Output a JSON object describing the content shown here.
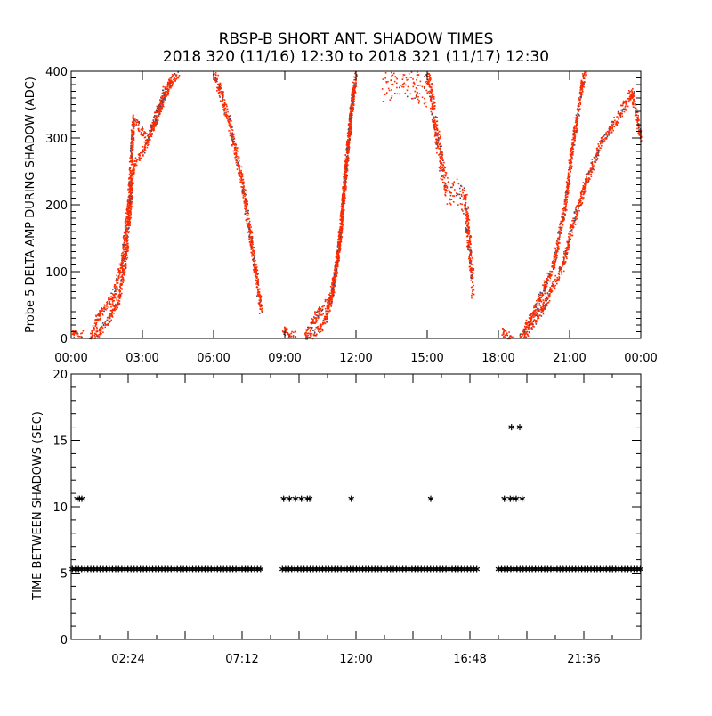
{
  "chart_data": [
    {
      "type": "scatter",
      "title": "RBSP-B SHORT ANT. SHADOW TIMES",
      "subtitle": "2018 320 (11/16) 12:30 to 2018 321 (11/17) 12:30",
      "xlabel": "",
      "ylabel": "Probe 5 DELTA AMP DURING SHADOW (ADC)",
      "xlim": [
        0,
        24
      ],
      "ylim": [
        0,
        400
      ],
      "xticks": [
        0,
        3,
        6,
        9,
        12,
        15,
        18,
        21,
        24
      ],
      "xtick_labels": [
        "00:00",
        "03:00",
        "06:00",
        "09:00",
        "12:00",
        "15:00",
        "18:00",
        "21:00",
        "00:00"
      ],
      "yticks": [
        0,
        100,
        200,
        300,
        400
      ],
      "ytick_labels": [
        "0",
        "100",
        "200",
        "300",
        "400"
      ],
      "colors": {
        "primary": "#ff2a00",
        "secondary": "#4a4a6a"
      },
      "series": [
        {
          "name": "track-1-low",
          "spread": 6,
          "points": [
            [
              0.0,
              10
            ],
            [
              0.2,
              4
            ],
            [
              0.45,
              8
            ]
          ]
        },
        {
          "name": "track-1-rise-a",
          "spread": 8,
          "points": [
            [
              0.8,
              2
            ],
            [
              1.2,
              40
            ],
            [
              1.7,
              60
            ],
            [
              2.1,
              110
            ],
            [
              2.4,
              200
            ],
            [
              2.6,
              330
            ],
            [
              3.2,
              300
            ],
            [
              3.9,
              370
            ],
            [
              4.5,
              400
            ]
          ]
        },
        {
          "name": "track-1-rise-b",
          "spread": 6,
          "points": [
            [
              0.9,
              0
            ],
            [
              1.5,
              25
            ],
            [
              2.0,
              60
            ],
            [
              2.3,
              130
            ],
            [
              2.6,
              260
            ],
            [
              3.0,
              280
            ],
            [
              3.6,
              330
            ],
            [
              4.2,
              390
            ]
          ]
        },
        {
          "name": "track-1-fall",
          "spread": 10,
          "points": [
            [
              6.0,
              400
            ],
            [
              6.6,
              330
            ],
            [
              7.1,
              250
            ],
            [
              7.5,
              160
            ],
            [
              7.8,
              90
            ],
            [
              8.0,
              40
            ]
          ]
        },
        {
          "name": "track-2-low",
          "spread": 6,
          "points": [
            [
              8.9,
              15
            ],
            [
              9.2,
              5
            ],
            [
              9.4,
              8
            ]
          ]
        },
        {
          "name": "track-2-rise-a",
          "spread": 8,
          "points": [
            [
              9.8,
              2
            ],
            [
              10.3,
              35
            ],
            [
              10.9,
              60
            ],
            [
              11.2,
              120
            ],
            [
              11.5,
              230
            ],
            [
              11.8,
              350
            ],
            [
              12.0,
              400
            ]
          ]
        },
        {
          "name": "track-2-rise-b",
          "spread": 6,
          "points": [
            [
              9.9,
              0
            ],
            [
              10.6,
              20
            ],
            [
              11.0,
              70
            ],
            [
              11.3,
              150
            ],
            [
              11.6,
              280
            ],
            [
              11.9,
              380
            ]
          ]
        },
        {
          "name": "track-2-top",
          "spread": 25,
          "points": [
            [
              13.1,
              380
            ],
            [
              14.0,
              390
            ],
            [
              15.0,
              370
            ]
          ]
        },
        {
          "name": "track-2-fall",
          "spread": 20,
          "points": [
            [
              15.0,
              400
            ],
            [
              15.4,
              300
            ],
            [
              15.8,
              220
            ],
            [
              16.3,
              220
            ],
            [
              16.6,
              200
            ],
            [
              16.9,
              80
            ]
          ]
        },
        {
          "name": "track-3-low",
          "spread": 6,
          "points": [
            [
              18.1,
              12
            ],
            [
              18.4,
              4
            ],
            [
              18.6,
              8
            ]
          ]
        },
        {
          "name": "track-3-rise-a",
          "spread": 7,
          "points": [
            [
              18.9,
              0
            ],
            [
              19.6,
              50
            ],
            [
              20.3,
              110
            ],
            [
              20.8,
              200
            ],
            [
              21.1,
              290
            ],
            [
              21.6,
              400
            ]
          ]
        },
        {
          "name": "track-3-rise-b",
          "spread": 8,
          "points": [
            [
              19.0,
              0
            ],
            [
              19.9,
              50
            ],
            [
              20.7,
              110
            ],
            [
              21.1,
              170
            ],
            [
              21.7,
              240
            ],
            [
              22.4,
              300
            ],
            [
              23.0,
              330
            ],
            [
              23.6,
              370
            ],
            [
              24.0,
              300
            ]
          ]
        }
      ]
    },
    {
      "type": "scatter",
      "xlabel": "",
      "ylabel": "TIME BETWEEN SHADOWS (SEC)",
      "xlim": [
        0,
        24
      ],
      "ylim": [
        0,
        20
      ],
      "xticks": [
        2.4,
        7.2,
        12.0,
        16.8,
        21.6
      ],
      "xtick_labels": [
        "02:24",
        "07:12",
        "12:00",
        "16:48",
        "21:36"
      ],
      "yticks": [
        0,
        5,
        10,
        15,
        20
      ],
      "ytick_labels": [
        "0",
        "5",
        "10",
        "15",
        "20"
      ],
      "marker": "*",
      "baseline_value": 5.3,
      "baseline_ranges": [
        [
          0.05,
          8.0
        ],
        [
          8.9,
          17.1
        ],
        [
          18.0,
          24.0
        ]
      ],
      "points": [
        [
          0.25,
          10.6
        ],
        [
          0.35,
          10.6
        ],
        [
          0.45,
          10.6
        ],
        [
          8.95,
          10.6
        ],
        [
          9.2,
          10.6
        ],
        [
          9.45,
          10.6
        ],
        [
          9.7,
          10.6
        ],
        [
          9.95,
          10.6
        ],
        [
          10.05,
          10.6
        ],
        [
          11.8,
          10.6
        ],
        [
          15.15,
          10.6
        ],
        [
          18.25,
          10.6
        ],
        [
          18.5,
          10.6
        ],
        [
          18.65,
          10.6
        ],
        [
          18.75,
          10.6
        ],
        [
          19.0,
          10.6
        ],
        [
          18.55,
          16.0
        ],
        [
          18.9,
          16.0
        ]
      ]
    }
  ]
}
